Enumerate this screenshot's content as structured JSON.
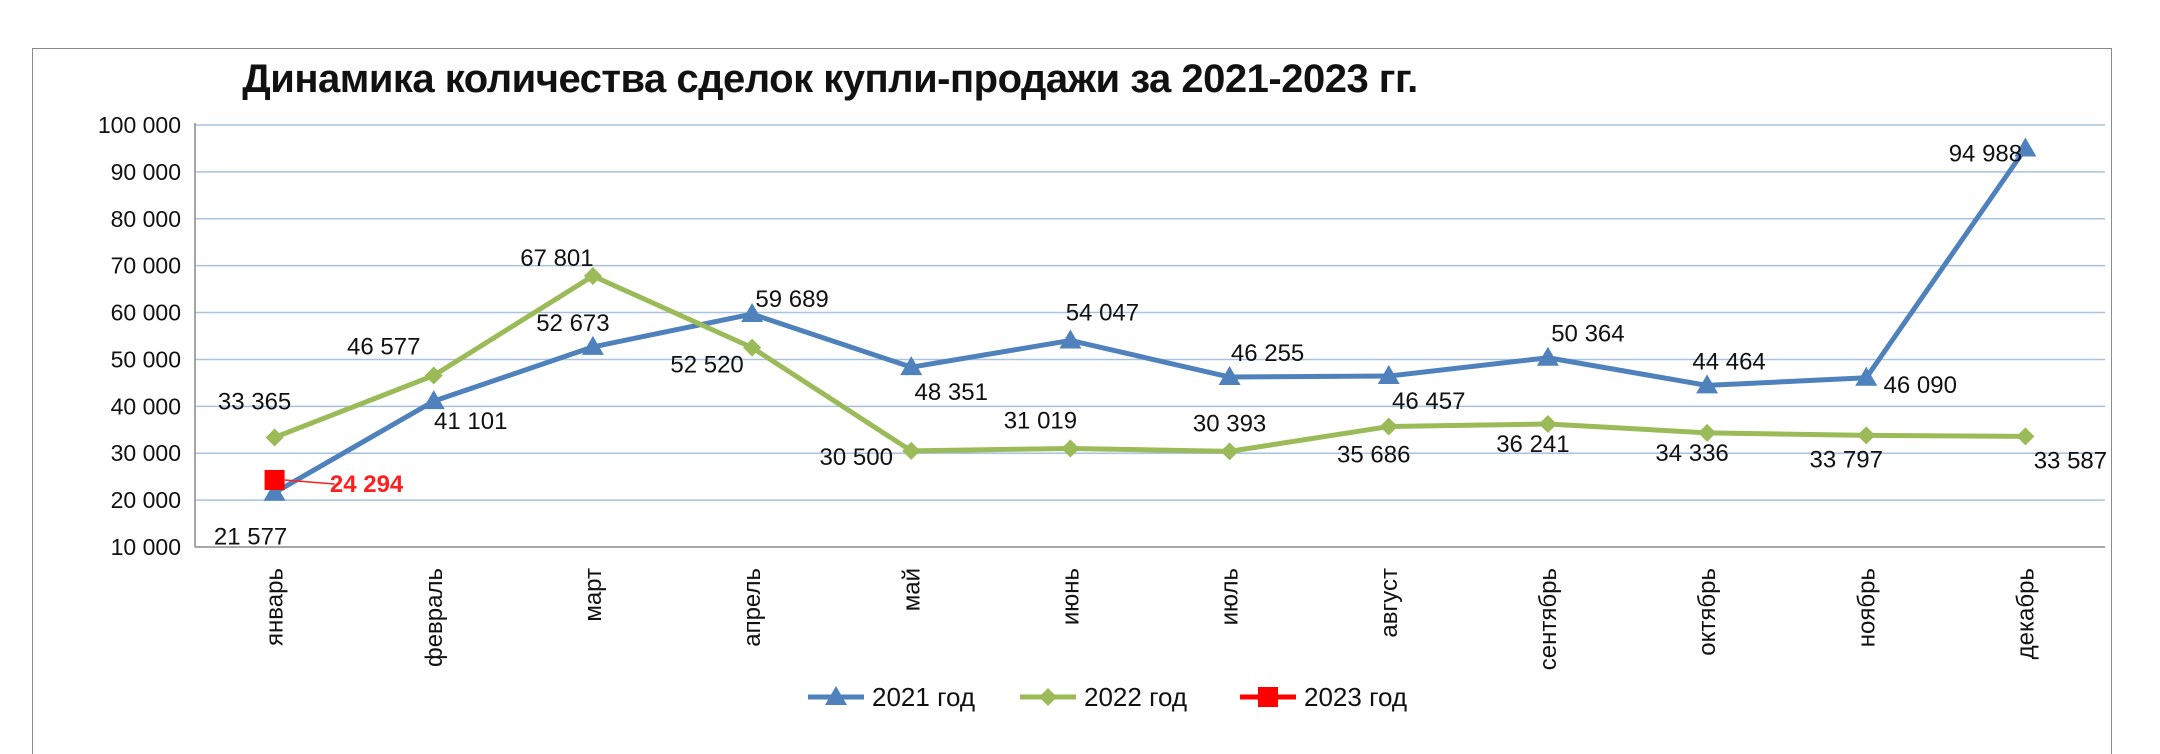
{
  "chart_data": {
    "type": "line",
    "title": "Динамика количества сделок купли-продажи за 2021-2023 гг.",
    "xlabel": "",
    "ylabel": "",
    "ylim": [
      10000,
      100000
    ],
    "y_ticks": [
      "10 000",
      "20 000",
      "30 000",
      "40 000",
      "50 000",
      "60 000",
      "70 000",
      "80 000",
      "90 000",
      "100 000"
    ],
    "grid": "horizontal",
    "legend_position": "bottom",
    "categories": [
      "январь",
      "февраль",
      "март",
      "апрель",
      "май",
      "июнь",
      "июль",
      "август",
      "сентябрь",
      "октябрь",
      "ноябрь",
      "декабрь"
    ],
    "series": [
      {
        "name": "2021 год",
        "color": "#4f81bd",
        "marker": "triangle",
        "values": [
          21577,
          41101,
          52673,
          59689,
          48351,
          54047,
          46255,
          46457,
          50364,
          44464,
          46090,
          94988
        ],
        "labels": [
          "21 577",
          "41 101",
          "52 673",
          "59 689",
          "48 351",
          "54 047",
          "46 255",
          "46 457",
          "50 364",
          "44 464",
          "46 090",
          "94 988"
        ]
      },
      {
        "name": "2022 год",
        "color": "#9bbb59",
        "marker": "diamond",
        "values": [
          33365,
          46577,
          67801,
          52520,
          30500,
          31019,
          30393,
          35686,
          36241,
          34336,
          33797,
          33587
        ],
        "labels": [
          "33 365",
          "46 577",
          "67 801",
          "52 520",
          "30 500",
          "31 019",
          "30 393",
          "35 686",
          "36 241",
          "34 336",
          "33 797",
          "33 587"
        ]
      },
      {
        "name": "2023 год",
        "color": "#ff0000",
        "marker": "square",
        "values": [
          24294,
          null,
          null,
          null,
          null,
          null,
          null,
          null,
          null,
          null,
          null,
          null
        ],
        "labels": [
          "24 294",
          "",
          "",
          "",
          "",
          "",
          "",
          "",
          "",
          "",
          "",
          ""
        ]
      }
    ]
  }
}
